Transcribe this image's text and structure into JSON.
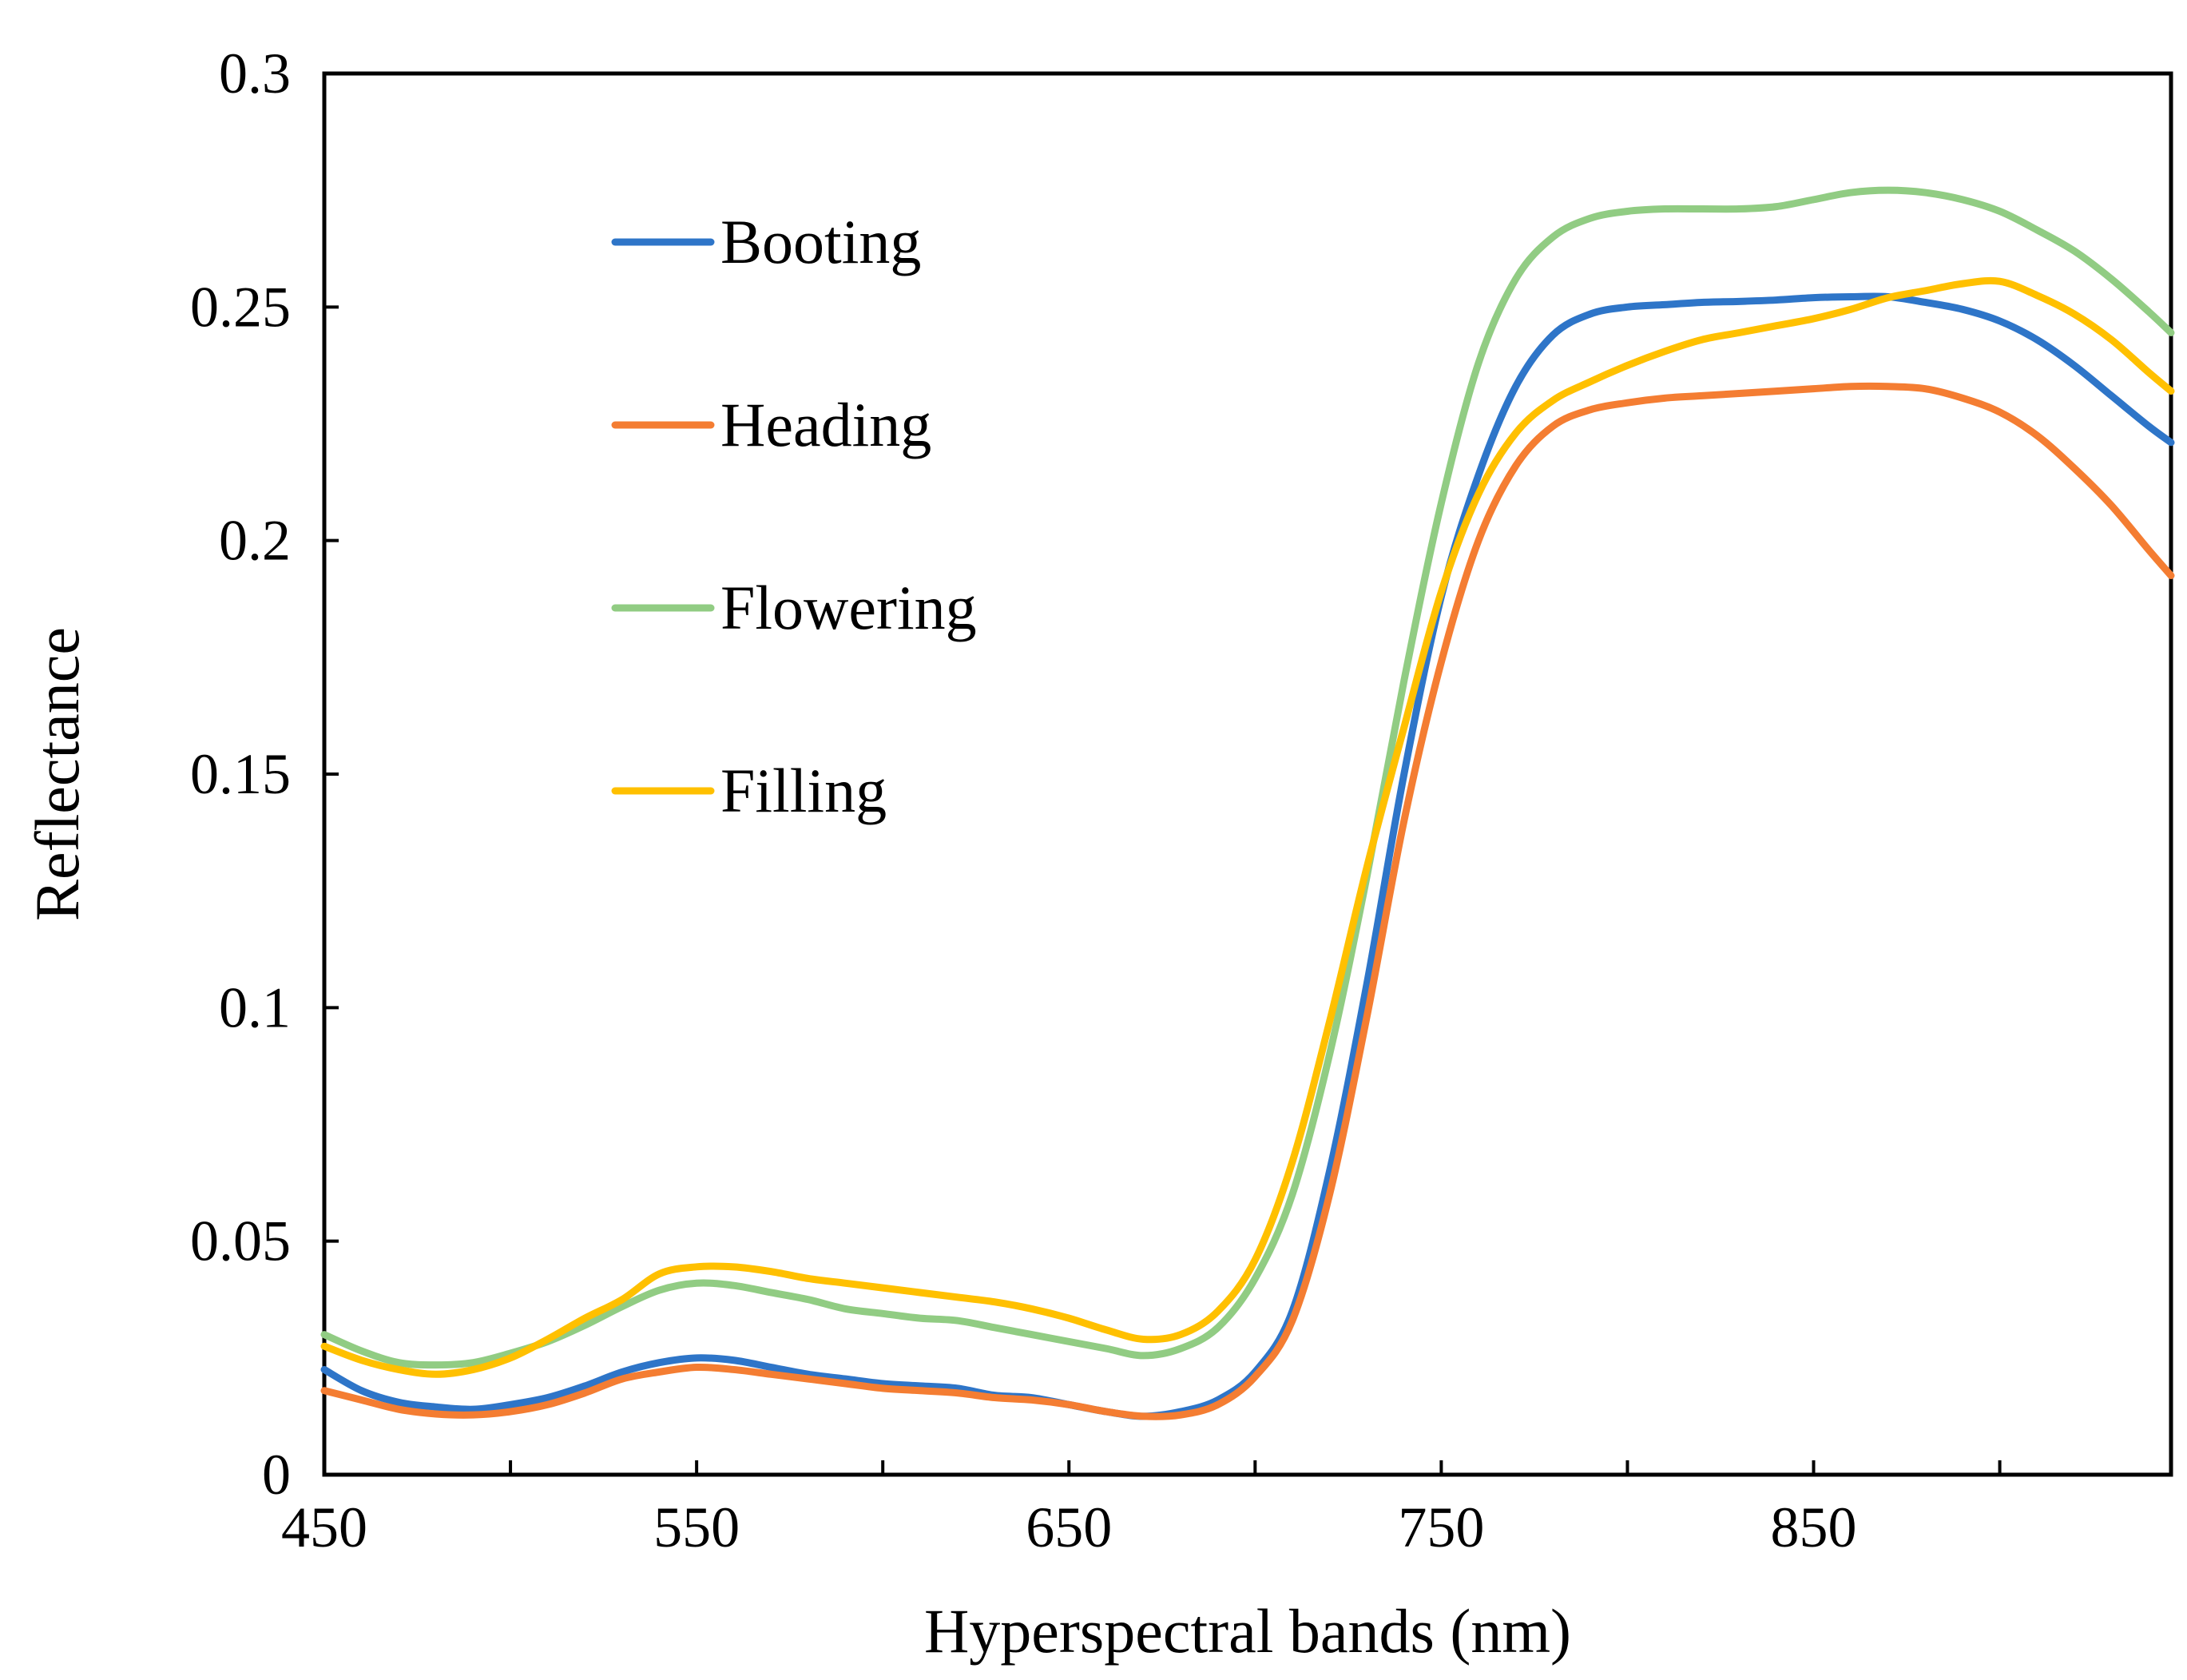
{
  "chart_data": {
    "type": "line",
    "title": "",
    "xlabel": "Hyperspectral bands (nm)",
    "ylabel": "Reflectance",
    "xlim": [
      450,
      946
    ],
    "ylim": [
      0,
      0.3
    ],
    "x_ticks": [
      450,
      550,
      650,
      750,
      850
    ],
    "x_tick_labels": [
      "450",
      "550",
      "650",
      "750",
      "850"
    ],
    "y_ticks": [
      0,
      0.05,
      0.1,
      0.15,
      0.2,
      0.25,
      0.3
    ],
    "y_tick_labels": [
      "0",
      "0.05",
      "0.1",
      "0.15",
      "0.2",
      "0.25",
      "0.3"
    ],
    "grid": false,
    "legend_position": "top-left",
    "x": [
      450,
      460,
      470,
      480,
      490,
      500,
      510,
      520,
      530,
      540,
      550,
      560,
      570,
      580,
      590,
      600,
      610,
      620,
      630,
      640,
      650,
      660,
      670,
      680,
      690,
      700,
      710,
      720,
      730,
      740,
      750,
      760,
      770,
      780,
      790,
      800,
      810,
      820,
      830,
      840,
      850,
      860,
      870,
      880,
      890,
      900,
      910,
      920,
      930,
      940,
      946
    ],
    "series": [
      {
        "name": "Booting",
        "color": "#2E75C8",
        "values": [
          0.0225,
          0.018,
          0.0155,
          0.0145,
          0.014,
          0.015,
          0.0165,
          0.019,
          0.022,
          0.024,
          0.025,
          0.0245,
          0.023,
          0.0215,
          0.0205,
          0.0195,
          0.019,
          0.0185,
          0.017,
          0.0165,
          0.015,
          0.0135,
          0.0125,
          0.0135,
          0.016,
          0.022,
          0.035,
          0.065,
          0.105,
          0.15,
          0.188,
          0.214,
          0.233,
          0.244,
          0.2485,
          0.25,
          0.2505,
          0.251,
          0.2512,
          0.2515,
          0.252,
          0.2522,
          0.2522,
          0.251,
          0.2495,
          0.247,
          0.243,
          0.2375,
          0.231,
          0.2245,
          0.221
        ]
      },
      {
        "name": "Heading",
        "color": "#F47D32",
        "values": [
          0.018,
          0.016,
          0.014,
          0.013,
          0.0128,
          0.0135,
          0.015,
          0.0175,
          0.0205,
          0.022,
          0.023,
          0.0225,
          0.0215,
          0.0205,
          0.0195,
          0.0185,
          0.018,
          0.0175,
          0.0165,
          0.016,
          0.015,
          0.0135,
          0.0125,
          0.0128,
          0.015,
          0.021,
          0.033,
          0.06,
          0.098,
          0.14,
          0.174,
          0.2,
          0.216,
          0.2245,
          0.228,
          0.2295,
          0.2305,
          0.231,
          0.2315,
          0.232,
          0.2325,
          0.233,
          0.233,
          0.2325,
          0.2305,
          0.2275,
          0.2225,
          0.2155,
          0.2075,
          0.198,
          0.1925
        ]
      },
      {
        "name": "Flowering",
        "color": "#91CC83",
        "values": [
          0.03,
          0.0265,
          0.024,
          0.0235,
          0.024,
          0.026,
          0.0285,
          0.032,
          0.036,
          0.0395,
          0.041,
          0.0405,
          0.039,
          0.0375,
          0.0355,
          0.0345,
          0.0335,
          0.033,
          0.0315,
          0.03,
          0.0285,
          0.027,
          0.0255,
          0.027,
          0.0315,
          0.042,
          0.06,
          0.09,
          0.128,
          0.17,
          0.208,
          0.238,
          0.256,
          0.265,
          0.269,
          0.2705,
          0.271,
          0.271,
          0.271,
          0.2715,
          0.273,
          0.2745,
          0.275,
          0.2745,
          0.273,
          0.2705,
          0.2665,
          0.262,
          0.256,
          0.249,
          0.2445
        ]
      },
      {
        "name": "Filling",
        "color": "#FFC000",
        "values": [
          0.0275,
          0.0245,
          0.0225,
          0.0215,
          0.0225,
          0.025,
          0.029,
          0.0335,
          0.0375,
          0.043,
          0.0445,
          0.0445,
          0.0435,
          0.042,
          0.041,
          0.04,
          0.039,
          0.038,
          0.037,
          0.0355,
          0.0335,
          0.031,
          0.029,
          0.03,
          0.035,
          0.046,
          0.067,
          0.097,
          0.13,
          0.16,
          0.189,
          0.21,
          0.223,
          0.23,
          0.234,
          0.2375,
          0.2405,
          0.243,
          0.2445,
          0.246,
          0.2475,
          0.2495,
          0.252,
          0.2535,
          0.255,
          0.2555,
          0.2525,
          0.2485,
          0.243,
          0.236,
          0.232
        ]
      }
    ]
  }
}
